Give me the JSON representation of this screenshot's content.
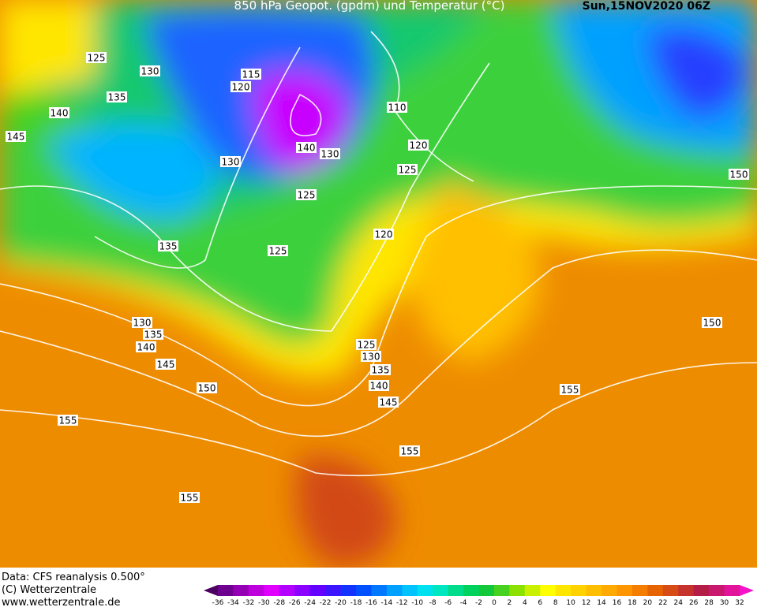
{
  "header": {
    "title": "850 hPa Geopot. (gpdm) und Temperatur (°C)",
    "date": "Sun,15NOV2020 06Z"
  },
  "footer": [
    "Data: CFS reanalysis 0.500°",
    "(C) Wetterzentrale",
    "www.wetterzentrale.de"
  ],
  "contour_labels": [
    125,
    130,
    135,
    140,
    145,
    115,
    120,
    110,
    120,
    125,
    140,
    130,
    130,
    125,
    135,
    125,
    120,
    150,
    130,
    135,
    140,
    145,
    150,
    155,
    155,
    125,
    130,
    135,
    140,
    145,
    155,
    155,
    150
  ],
  "colorbar": {
    "ticks": [
      -36,
      -34,
      -32,
      -30,
      -28,
      -26,
      -24,
      -22,
      -20,
      -18,
      -16,
      -14,
      -12,
      -10,
      -8,
      -6,
      -4,
      -2,
      0,
      2,
      4,
      6,
      8,
      10,
      12,
      14,
      16,
      18,
      20,
      22,
      24,
      26,
      28,
      30,
      32
    ],
    "colors": [
      "#4b0060",
      "#6e0090",
      "#9600b4",
      "#be00dc",
      "#e100ff",
      "#b400ff",
      "#8c00ff",
      "#6400ff",
      "#3c14ff",
      "#1432ff",
      "#0050ff",
      "#0078ff",
      "#00a0ff",
      "#00c3ff",
      "#00e1f0",
      "#00e6be",
      "#00dc8c",
      "#00d25f",
      "#14c83c",
      "#46d21e",
      "#8ce100",
      "#c8f000",
      "#ffff00",
      "#ffe600",
      "#ffd200",
      "#ffbe00",
      "#ffaa00",
      "#ff9600",
      "#f57d00",
      "#e66400",
      "#d74b14",
      "#c8322d",
      "#b41e46",
      "#c8196e",
      "#e1149b",
      "#f514c8"
    ]
  }
}
